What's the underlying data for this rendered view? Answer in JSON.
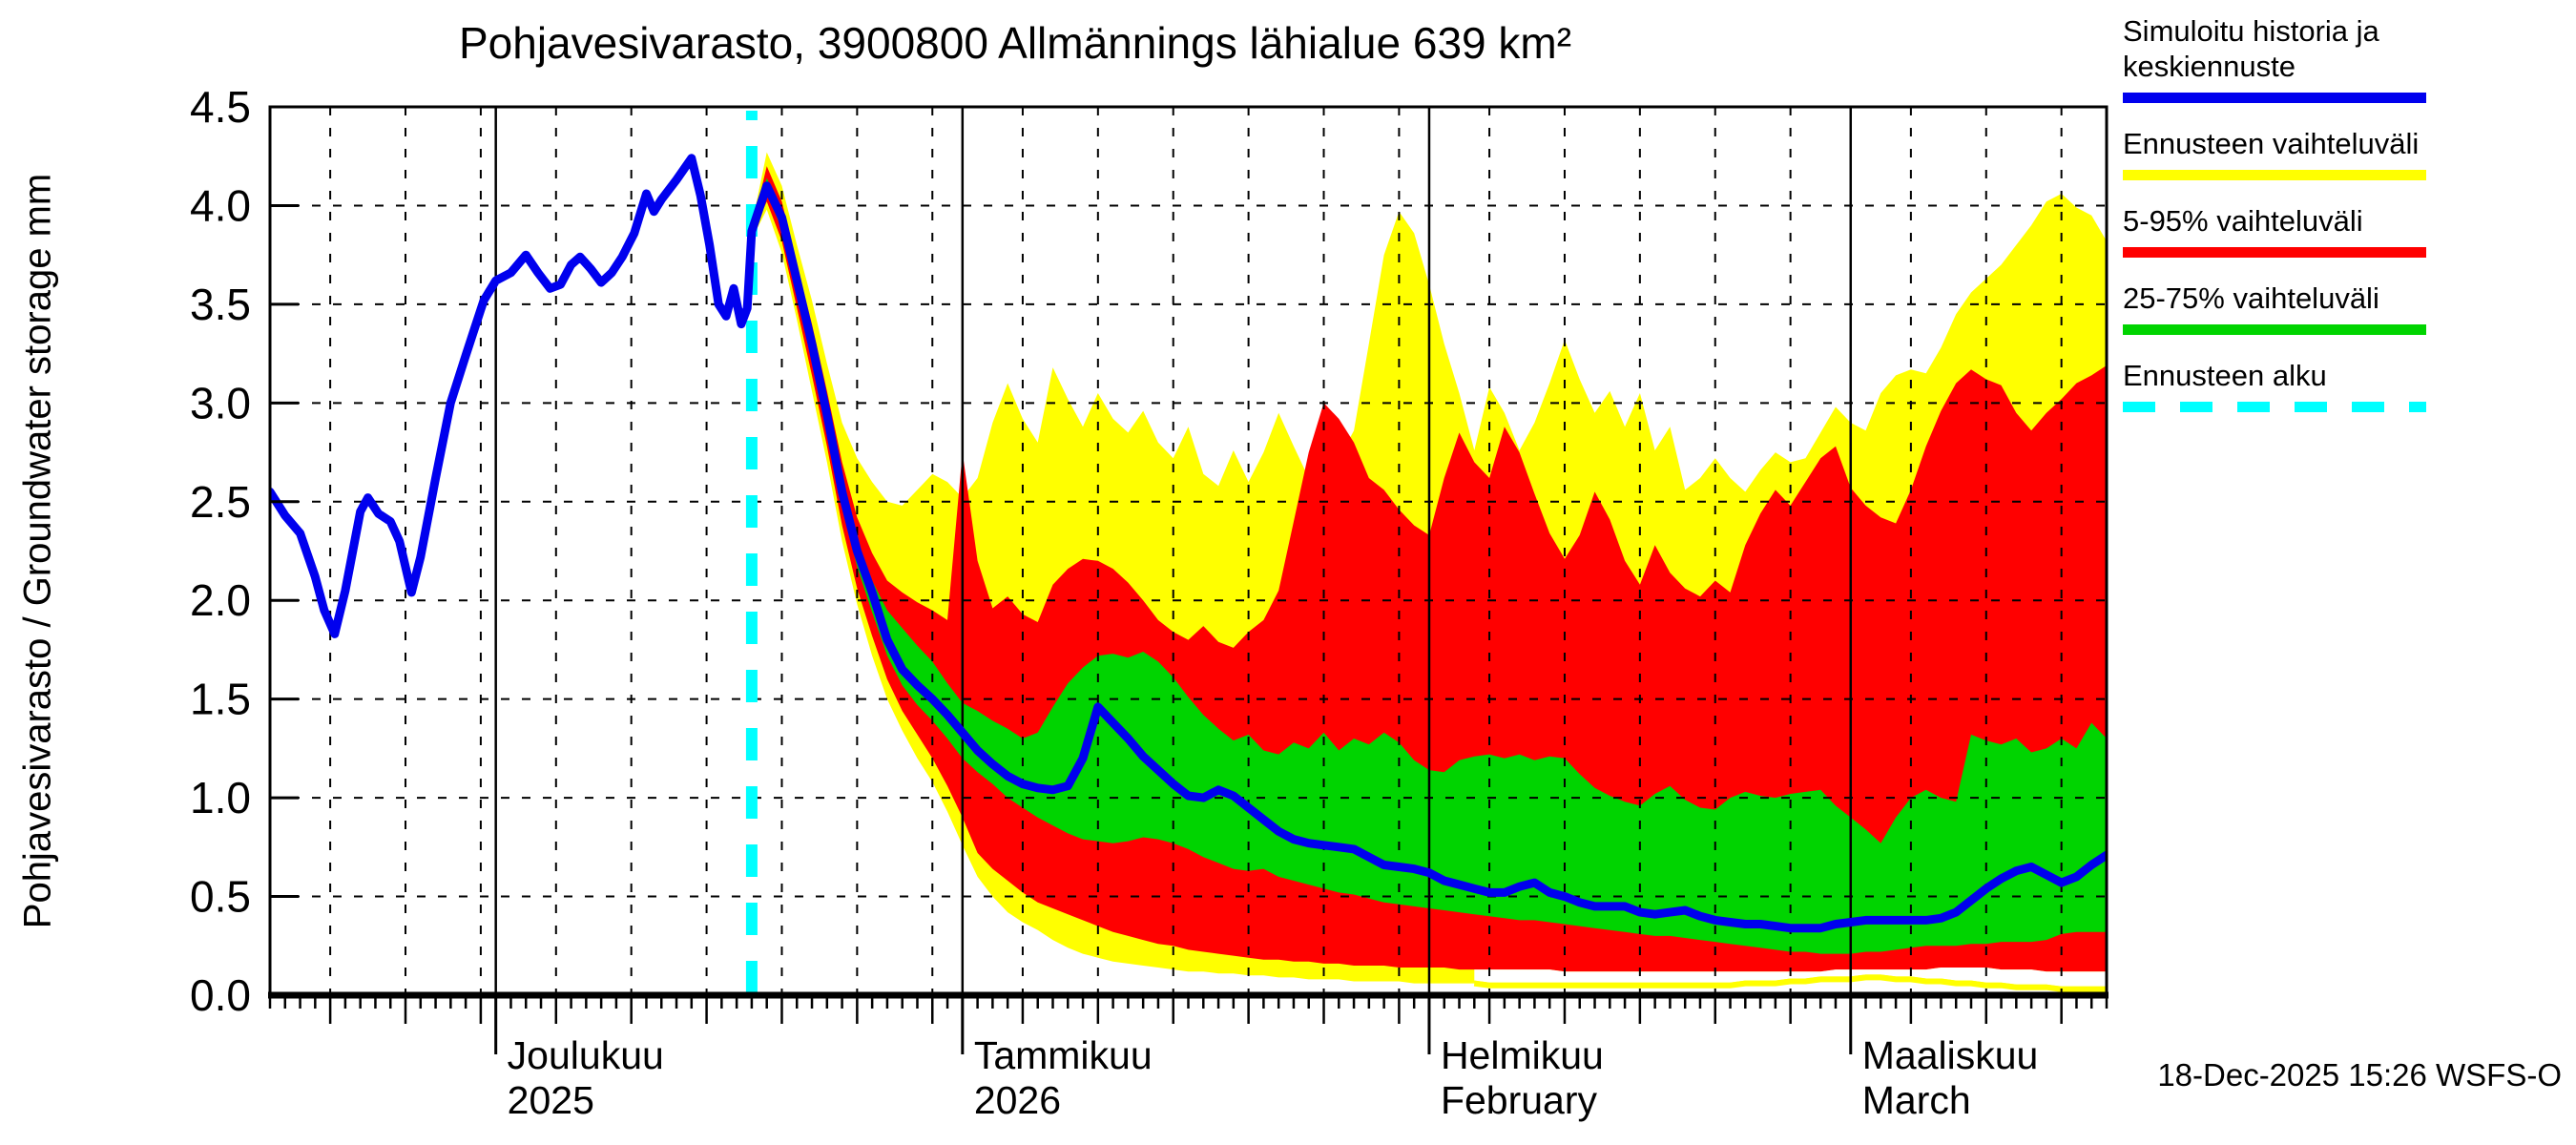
{
  "header": {
    "title": "Pohjavesivarasto, 3900800 Allmännings lähialue 639 km²"
  },
  "y_axis": {
    "label": "Pohjavesivarasto / Groundwater storage  mm",
    "ticks": [
      "0.0",
      "0.5",
      "1.0",
      "1.5",
      "2.0",
      "2.5",
      "3.0",
      "3.5",
      "4.0",
      "4.5"
    ]
  },
  "x_axis": {
    "months": [
      {
        "label": "Joulukuu",
        "sublabel": "2025",
        "day": 15
      },
      {
        "label": "Tammikuu",
        "sublabel": "2026",
        "day": 46
      },
      {
        "label": "Helmikuu",
        "sublabel": "February",
        "day": 77
      },
      {
        "label": "Maaliskuu",
        "sublabel": "March",
        "day": 105
      }
    ],
    "pentad_days": [
      4,
      9,
      14,
      19,
      24,
      29,
      34,
      39,
      44,
      50,
      55,
      60,
      65,
      70,
      75,
      81,
      86,
      91,
      96,
      101,
      109,
      114,
      119
    ],
    "span_days": 122
  },
  "legend": {
    "items": [
      {
        "lines": [
          "Simuloitu historia ja",
          "keskiennuste"
        ],
        "color": "#0000ee",
        "dashed": false
      },
      {
        "lines": [
          "Ennusteen vaihteluväli"
        ],
        "color": "#ffff00",
        "dashed": false
      },
      {
        "lines": [
          "5-95% vaihteluväli"
        ],
        "color": "#ff0000",
        "dashed": false
      },
      {
        "lines": [
          "25-75% vaihteluväli"
        ],
        "color": "#00d400",
        "dashed": false
      },
      {
        "lines": [
          "Ennusteen alku"
        ],
        "color": "#00ffff",
        "dashed": true
      }
    ]
  },
  "footer": {
    "timestamp": "18-Dec-2025 15:26 WSFS-O"
  },
  "colors": {
    "median": "#0000ee",
    "band_minmax": "#ffff00",
    "band_5_95": "#ff0000",
    "band_25_75": "#00d400",
    "forecast_start": "#00ffff",
    "grid": "#000000",
    "background": "#ffffff"
  },
  "chart_data": {
    "type": "area",
    "title": "Pohjavesivarasto, 3900800 Allmännings lähialue 639 km²",
    "xlabel": "",
    "ylabel": "Pohjavesivarasto / Groundwater storage  mm",
    "ylim": [
      0,
      4.5
    ],
    "xlim_days": [
      0,
      122
    ],
    "x_day0_date": "16-Nov-2025",
    "forecast_start_day": 32,
    "grid": true,
    "legend_position": "top-right",
    "history": {
      "name": "Simuloitu historia ja keskiennuste",
      "days": [
        0,
        1,
        2,
        3,
        3.6,
        4.3,
        5,
        6,
        6.5,
        7.2,
        8,
        8.6,
        9.4,
        10,
        11,
        12,
        13,
        13.6,
        14.2,
        15,
        16,
        17,
        17.8,
        18.6,
        19.3,
        20,
        20.6,
        21.3,
        22,
        22.7,
        23.4,
        24.2,
        25,
        25.5,
        26,
        27,
        28,
        28.6,
        29.2,
        29.8,
        30.3,
        30.8,
        31.3,
        31.7,
        32
      ],
      "values": [
        2.55,
        2.43,
        2.34,
        2.12,
        1.95,
        1.83,
        2.05,
        2.45,
        2.52,
        2.44,
        2.4,
        2.3,
        2.04,
        2.22,
        2.62,
        3.0,
        3.24,
        3.38,
        3.52,
        3.62,
        3.66,
        3.75,
        3.66,
        3.58,
        3.6,
        3.7,
        3.74,
        3.68,
        3.61,
        3.66,
        3.74,
        3.86,
        4.06,
        3.97,
        4.03,
        4.13,
        4.24,
        4.05,
        3.8,
        3.5,
        3.44,
        3.58,
        3.4,
        3.48,
        3.87
      ]
    },
    "median_forecast": {
      "days_start": 33,
      "values": [
        4.1,
        3.94,
        3.62,
        3.3,
        2.94,
        2.55,
        2.25,
        2.04,
        1.8,
        1.65,
        1.57,
        1.5,
        1.42,
        1.33,
        1.24,
        1.17,
        1.11,
        1.07,
        1.05,
        1.04,
        1.06,
        1.2,
        1.46,
        1.38,
        1.3,
        1.21,
        1.14,
        1.07,
        1.01,
        1.0,
        1.04,
        1.01,
        0.95,
        0.89,
        0.83,
        0.79,
        0.77,
        0.76,
        0.75,
        0.74,
        0.7,
        0.66,
        0.65,
        0.64,
        0.62,
        0.58,
        0.56,
        0.54,
        0.52,
        0.52,
        0.55,
        0.57,
        0.52,
        0.5,
        0.47,
        0.45,
        0.45,
        0.45,
        0.42,
        0.41,
        0.42,
        0.43,
        0.4,
        0.38,
        0.37,
        0.36,
        0.36,
        0.35,
        0.34,
        0.34,
        0.34,
        0.36,
        0.37,
        0.38,
        0.38,
        0.38,
        0.38,
        0.38,
        0.39,
        0.42,
        0.48,
        0.54,
        0.59,
        0.63,
        0.65,
        0.61,
        0.57,
        0.6,
        0.66,
        0.71
      ]
    },
    "bands": {
      "days_start": 32,
      "minmax": {
        "label": "Ennusteen vaihteluväli",
        "top": [
          3.9,
          4.27,
          4.1,
          3.8,
          3.52,
          3.2,
          2.9,
          2.72,
          2.6,
          2.5,
          2.48,
          2.56,
          2.64,
          2.6,
          2.52,
          2.62,
          2.9,
          3.1,
          2.92,
          2.8,
          3.18,
          3.02,
          2.88,
          3.05,
          2.92,
          2.85,
          2.96,
          2.8,
          2.72,
          2.88,
          2.64,
          2.58,
          2.76,
          2.6,
          2.75,
          2.95,
          2.78,
          2.62,
          2.55,
          2.72,
          2.86,
          3.3,
          3.75,
          3.97,
          3.86,
          3.6,
          3.3,
          3.05,
          2.76,
          3.08,
          2.95,
          2.76,
          2.9,
          3.1,
          3.32,
          3.12,
          2.95,
          3.06,
          2.88,
          3.05,
          2.76,
          2.88,
          2.56,
          2.62,
          2.72,
          2.62,
          2.55,
          2.66,
          2.75,
          2.7,
          2.72,
          2.85,
          2.98,
          2.9,
          2.86,
          3.05,
          3.14,
          3.17,
          3.15,
          3.28,
          3.45,
          3.56,
          3.63,
          3.7,
          3.8,
          3.9,
          4.02,
          4.06,
          3.99,
          3.95,
          3.82
        ],
        "bottom": [
          3.83,
          3.98,
          3.76,
          3.42,
          3.06,
          2.7,
          2.3,
          1.98,
          1.72,
          1.5,
          1.34,
          1.2,
          1.08,
          0.93,
          0.76,
          0.6,
          0.5,
          0.42,
          0.37,
          0.33,
          0.28,
          0.24,
          0.21,
          0.19,
          0.17,
          0.16,
          0.15,
          0.14,
          0.13,
          0.12,
          0.12,
          0.11,
          0.11,
          0.1,
          0.1,
          0.09,
          0.09,
          0.08,
          0.08,
          0.08,
          0.07,
          0.07,
          0.07,
          0.07,
          0.06,
          0.06,
          0.06,
          0.06,
          0.06,
          0.05,
          0.05,
          0.05,
          0.05,
          0.05,
          0.05,
          0.05,
          0.05,
          0.05,
          0.05,
          0.05,
          0.05,
          0.05,
          0.05,
          0.05,
          0.05,
          0.05,
          0.06,
          0.06,
          0.06,
          0.07,
          0.07,
          0.08,
          0.08,
          0.08,
          0.09,
          0.09,
          0.08,
          0.08,
          0.07,
          0.07,
          0.06,
          0.06,
          0.05,
          0.05,
          0.04,
          0.04,
          0.04,
          0.03,
          0.03,
          0.03,
          0.03
        ]
      },
      "p5_95": {
        "label": "5-95% vaihteluväli",
        "top": [
          3.88,
          4.2,
          4.02,
          3.7,
          3.4,
          3.06,
          2.7,
          2.42,
          2.24,
          2.1,
          2.04,
          1.99,
          1.95,
          1.9,
          2.75,
          2.2,
          1.96,
          2.02,
          1.93,
          1.89,
          2.08,
          2.16,
          2.21,
          2.2,
          2.16,
          2.09,
          2.0,
          1.9,
          1.84,
          1.8,
          1.87,
          1.79,
          1.76,
          1.84,
          1.9,
          2.05,
          2.4,
          2.75,
          3.0,
          2.92,
          2.8,
          2.62,
          2.56,
          2.46,
          2.38,
          2.33,
          2.62,
          2.85,
          2.7,
          2.62,
          2.88,
          2.75,
          2.54,
          2.34,
          2.21,
          2.33,
          2.55,
          2.41,
          2.2,
          2.08,
          2.28,
          2.14,
          2.06,
          2.02,
          2.1,
          2.04,
          2.28,
          2.44,
          2.56,
          2.48,
          2.6,
          2.72,
          2.78,
          2.57,
          2.48,
          2.42,
          2.39,
          2.56,
          2.78,
          2.96,
          3.1,
          3.17,
          3.12,
          3.09,
          2.95,
          2.86,
          2.95,
          3.02,
          3.1,
          3.14,
          3.19
        ],
        "bottom": [
          3.85,
          4.02,
          3.82,
          3.48,
          3.14,
          2.78,
          2.38,
          2.06,
          1.82,
          1.6,
          1.44,
          1.32,
          1.2,
          1.06,
          0.9,
          0.72,
          0.64,
          0.58,
          0.52,
          0.47,
          0.44,
          0.41,
          0.38,
          0.35,
          0.32,
          0.3,
          0.28,
          0.26,
          0.25,
          0.23,
          0.22,
          0.21,
          0.2,
          0.19,
          0.18,
          0.18,
          0.17,
          0.17,
          0.16,
          0.16,
          0.15,
          0.15,
          0.15,
          0.14,
          0.14,
          0.14,
          0.14,
          0.13,
          0.13,
          0.13,
          0.13,
          0.13,
          0.13,
          0.13,
          0.12,
          0.12,
          0.12,
          0.12,
          0.12,
          0.12,
          0.12,
          0.12,
          0.12,
          0.12,
          0.12,
          0.12,
          0.12,
          0.12,
          0.12,
          0.12,
          0.12,
          0.12,
          0.13,
          0.13,
          0.13,
          0.13,
          0.13,
          0.13,
          0.13,
          0.14,
          0.14,
          0.14,
          0.14,
          0.13,
          0.13,
          0.13,
          0.12,
          0.12,
          0.12,
          0.12,
          0.12
        ]
      },
      "p25_75": {
        "label": "25-75% vaihteluväli",
        "top": [
          3.87,
          4.14,
          3.97,
          3.66,
          3.34,
          2.99,
          2.6,
          2.31,
          2.1,
          1.95,
          1.86,
          1.77,
          1.69,
          1.58,
          1.48,
          1.44,
          1.39,
          1.35,
          1.3,
          1.33,
          1.46,
          1.58,
          1.66,
          1.72,
          1.73,
          1.71,
          1.74,
          1.69,
          1.61,
          1.51,
          1.42,
          1.35,
          1.29,
          1.32,
          1.24,
          1.22,
          1.28,
          1.25,
          1.33,
          1.24,
          1.3,
          1.27,
          1.33,
          1.28,
          1.19,
          1.14,
          1.13,
          1.19,
          1.21,
          1.22,
          1.2,
          1.22,
          1.19,
          1.21,
          1.2,
          1.12,
          1.05,
          1.01,
          0.98,
          0.96,
          1.02,
          1.06,
          0.99,
          0.95,
          0.94,
          1.0,
          1.03,
          1.01,
          1.0,
          1.02,
          1.03,
          1.04,
          0.96,
          0.9,
          0.84,
          0.77,
          0.9,
          1.0,
          1.04,
          1.0,
          0.98,
          1.32,
          1.29,
          1.27,
          1.3,
          1.23,
          1.25,
          1.3,
          1.25,
          1.38,
          1.3
        ],
        "bottom": [
          3.86,
          4.06,
          3.88,
          3.55,
          3.22,
          2.86,
          2.47,
          2.17,
          1.94,
          1.72,
          1.57,
          1.47,
          1.39,
          1.3,
          1.2,
          1.13,
          1.07,
          1.0,
          0.95,
          0.9,
          0.86,
          0.82,
          0.79,
          0.78,
          0.77,
          0.78,
          0.8,
          0.79,
          0.77,
          0.74,
          0.7,
          0.67,
          0.64,
          0.63,
          0.64,
          0.6,
          0.58,
          0.56,
          0.54,
          0.52,
          0.51,
          0.49,
          0.47,
          0.46,
          0.45,
          0.44,
          0.43,
          0.42,
          0.41,
          0.4,
          0.39,
          0.38,
          0.38,
          0.37,
          0.36,
          0.35,
          0.34,
          0.33,
          0.32,
          0.31,
          0.3,
          0.3,
          0.29,
          0.28,
          0.27,
          0.26,
          0.25,
          0.24,
          0.23,
          0.22,
          0.22,
          0.21,
          0.21,
          0.21,
          0.22,
          0.22,
          0.23,
          0.24,
          0.25,
          0.25,
          0.25,
          0.26,
          0.26,
          0.27,
          0.27,
          0.27,
          0.28,
          0.31,
          0.32,
          0.32,
          0.32
        ]
      }
    }
  }
}
